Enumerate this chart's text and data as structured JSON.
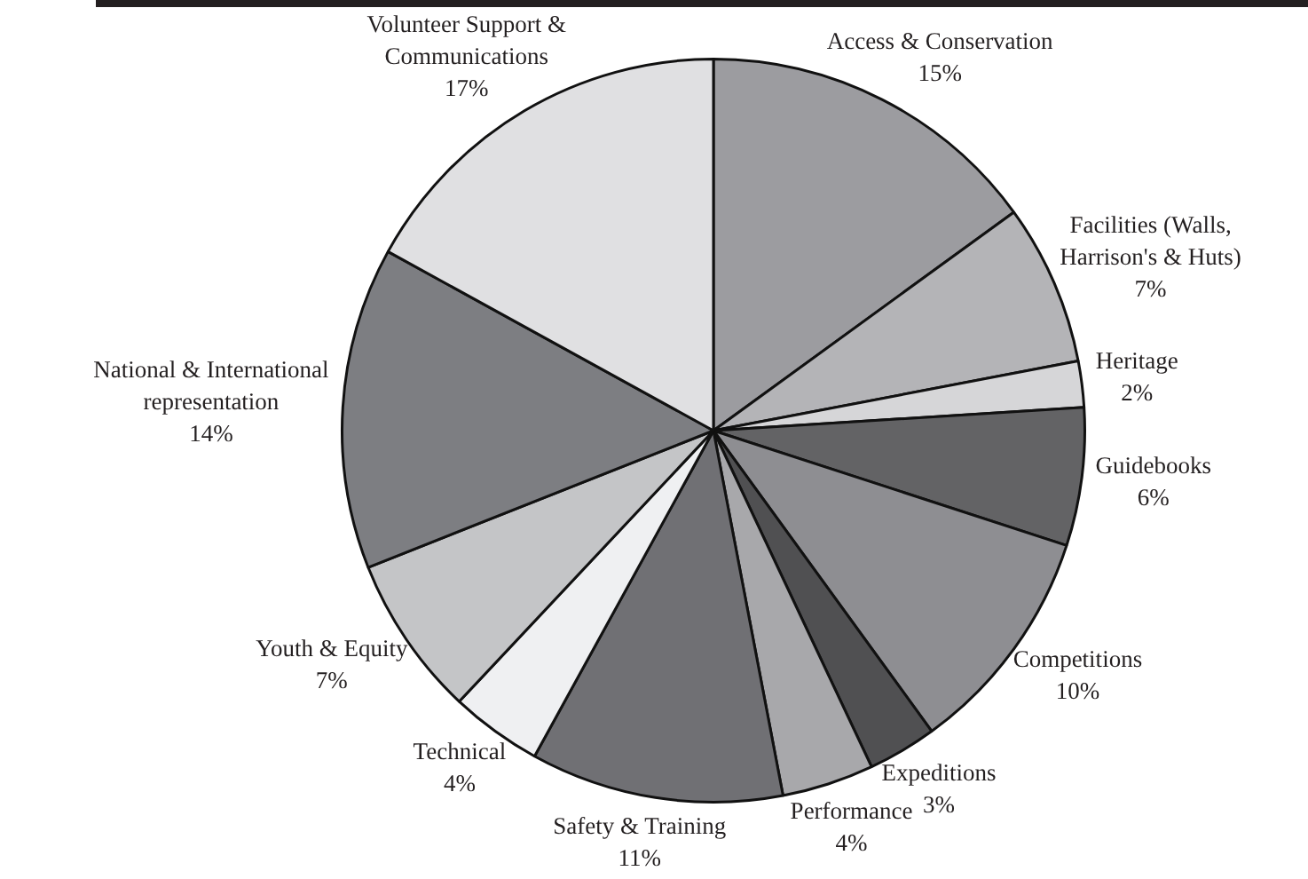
{
  "chart_data": {
    "type": "pie",
    "categories": [
      "Access & Conservation",
      "Facilities (Walls, Harrison's & Huts)",
      "Heritage",
      "Guidebooks",
      "Competitions",
      "Expeditions",
      "Performance",
      "Safety & Training",
      "Technical",
      "Youth & Equity",
      "National & International representation",
      "Volunteer Support & Communications"
    ],
    "values": [
      15,
      7,
      2,
      6,
      10,
      3,
      4,
      11,
      4,
      7,
      14,
      17
    ],
    "colors": [
      "#9c9ca0",
      "#b4b4b7",
      "#d6d6d8",
      "#636365",
      "#8e8e92",
      "#505052",
      "#a8a8ab",
      "#707074",
      "#eff0f2",
      "#c4c5c7",
      "#7d7e82",
      "#e0e0e2"
    ],
    "value_labels": [
      "15%",
      "7%",
      "2%",
      "6%",
      "10%",
      "3%",
      "4%",
      "11%",
      "4%",
      "7%",
      "14%",
      "17%"
    ],
    "legend": false
  }
}
